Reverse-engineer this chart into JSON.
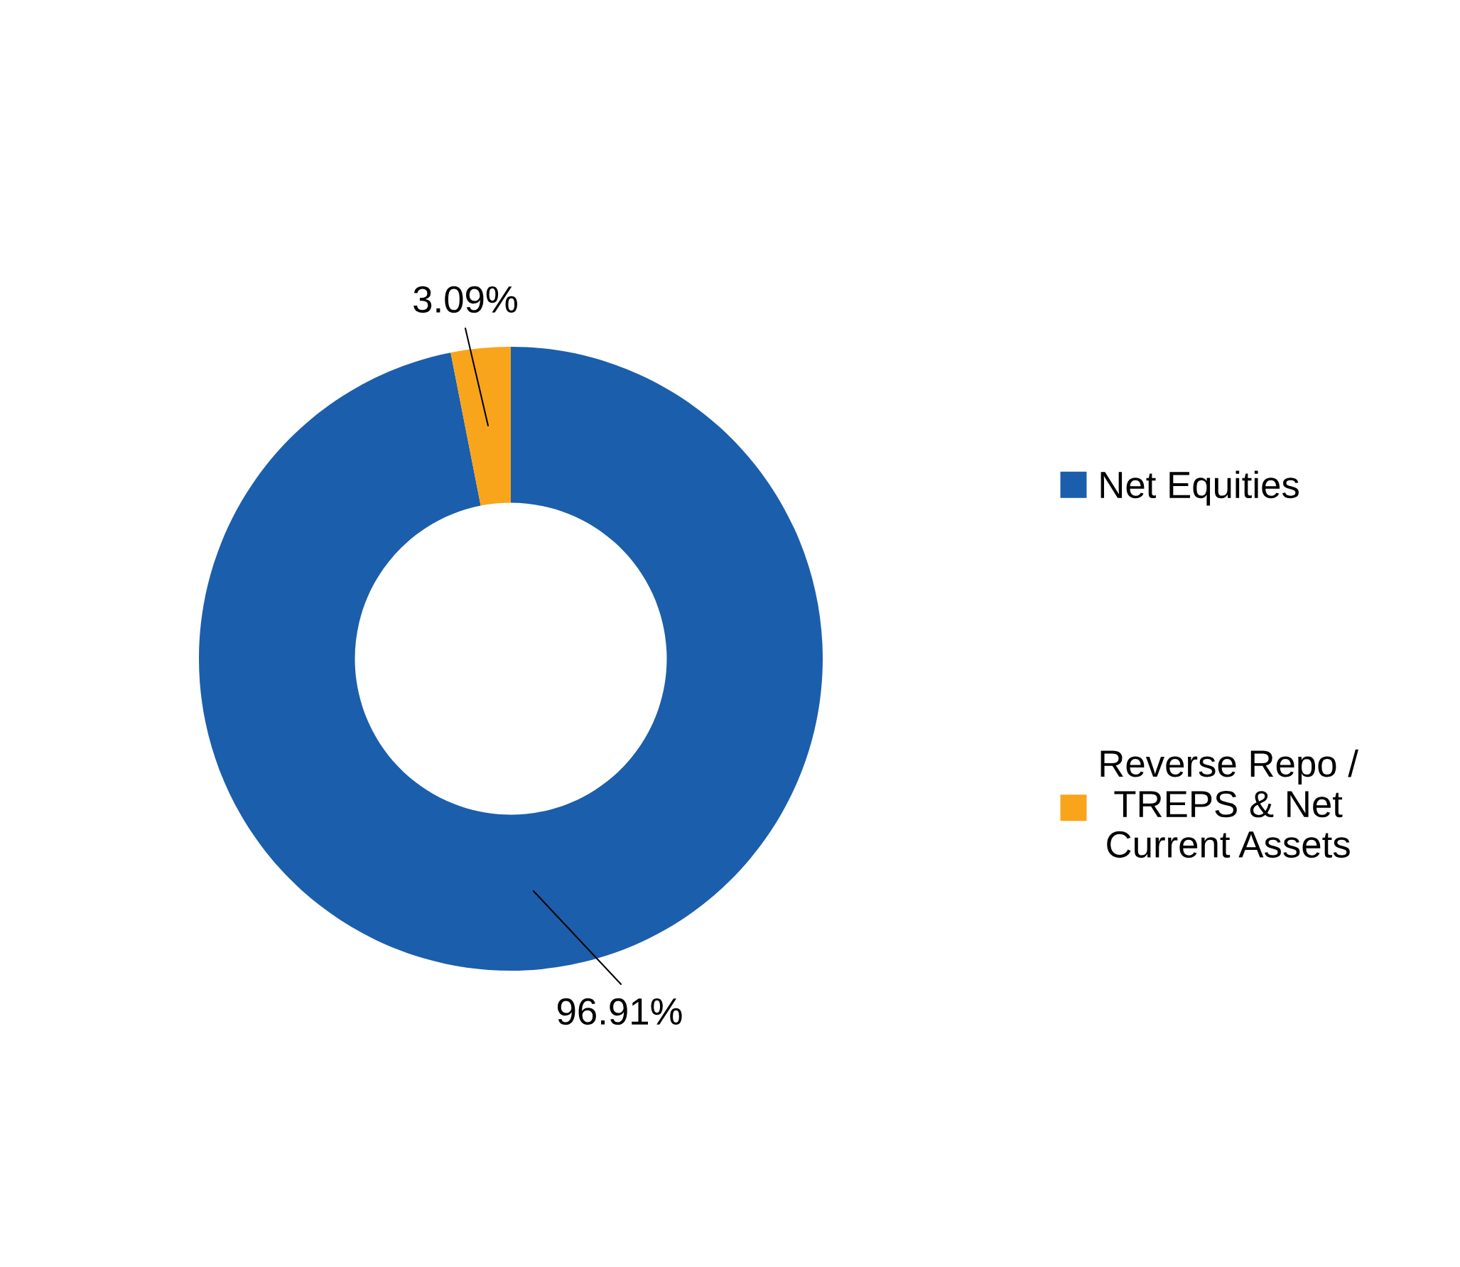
{
  "chart_data": {
    "type": "donut",
    "categories": [
      "Net Equities",
      "Reverse Repo / TREPS & Net Current Assets"
    ],
    "values": [
      96.91,
      3.09
    ],
    "colors": [
      "#1b5eab",
      "#f8a51b"
    ],
    "value_labels": [
      "96.91%",
      "3.09%"
    ],
    "legend": "right"
  }
}
